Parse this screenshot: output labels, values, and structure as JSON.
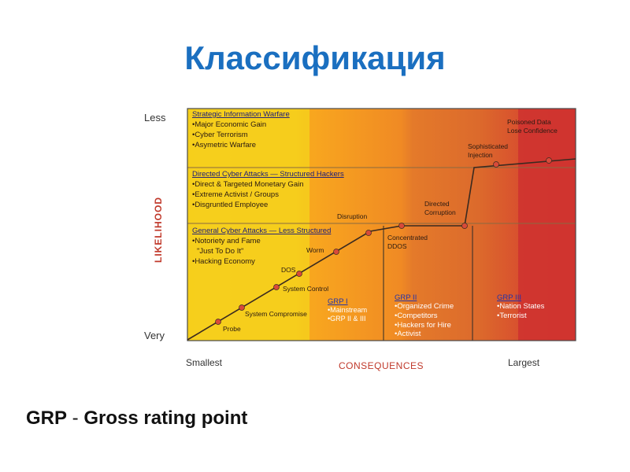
{
  "slide": {
    "title": "Классификация",
    "footnote_abbr": "GRP",
    "footnote_sep": " - ",
    "footnote_text": "Gross rating point"
  },
  "axes": {
    "y_title": "LIKELIHOOD",
    "y_top": "Less",
    "y_bottom": "Very",
    "x_title": "CONSEQUENCES",
    "x_left": "Smallest",
    "x_right": "Largest"
  },
  "bands": {
    "strategic": {
      "heading": "Strategic Information Warfare",
      "items": [
        "•Major Economic Gain",
        "•Cyber Terrorism",
        "•Asymetric Warfare"
      ]
    },
    "directed": {
      "heading": "Directed Cyber Attacks — Structured Hackers",
      "items": [
        "•Direct & Targeted Monetary Gain",
        "•Extreme Activist / Groups",
        "•Disgruntled Employee"
      ]
    },
    "general": {
      "heading": "General Cyber Attacks — Less Structured",
      "items": [
        "•Notoriety and Fame",
        "\"Just To Do It\"",
        "•Hacking Economy"
      ]
    }
  },
  "groups": {
    "grp1": {
      "title": "GRP I",
      "items": [
        "•Mainstream",
        "•GRP II & III"
      ]
    },
    "grp2": {
      "title": "GRP II",
      "items": [
        "•Organized Crime",
        "•Competitors",
        "•Hackers for Hire",
        "•Activist"
      ]
    },
    "grp3": {
      "title": "GRP III",
      "items": [
        "•Nation States",
        "•Terrorist"
      ]
    }
  },
  "points": {
    "probe": "Probe",
    "system_compromise": "System Compromise",
    "system_control": "System Control",
    "dos": "DOS",
    "worm": "Worm",
    "disruption": "Disruption",
    "concentrated_1": "Concentrated",
    "concentrated_2": "DDOS",
    "directed_1": "Directed",
    "directed_2": "Corruption",
    "sophisticated_1": "Sophisticated",
    "sophisticated_2": "Injection",
    "poisoned_1": "Poisoned Data",
    "poisoned_2": "Lose Confidence"
  },
  "colors": {
    "title": "#1a6fc0",
    "zone_yellow": "#f7d21a",
    "zone_lightorange": "#f9a91e",
    "zone_orange": "#f08a24",
    "zone_darkorange": "#dc6a2c",
    "zone_red": "#cf3a30",
    "curve": "#3a2a20",
    "marker": "#d84a3a"
  }
}
